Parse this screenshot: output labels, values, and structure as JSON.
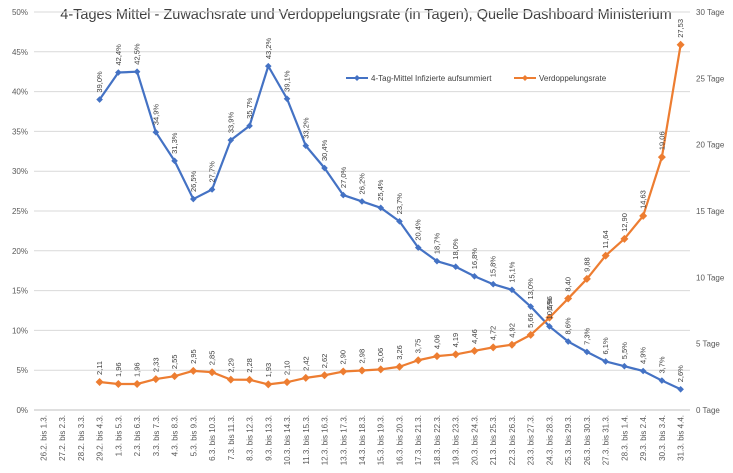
{
  "chart_data": {
    "type": "line",
    "title": "4-Tages Mittel - Zuwachsrate und Verdoppelungsrate (in Tagen), Quelle Dashboard Ministerium",
    "categories": [
      "26.2. bis 1.3.",
      "27.2. bis 2.3.",
      "28.2. bis 3.3.",
      "29.2. bis 4.3.",
      "1.3. bis 5.3.",
      "2.3. bis 6.3.",
      "3.3. bis 7.3.",
      "4.3. bis 8.3.",
      "5.3. bis 9.3.",
      "6.3. bis 10.3.",
      "7.3. bis 11.3.",
      "8.3. bis 12.3.",
      "9.3. bis 13.3.",
      "10.3. bis 14.3.",
      "11.3. bis 15.3.",
      "12.3. bis 16.3.",
      "13.3. bis 17.3.",
      "14.3. bis 18.3.",
      "15.3. bis 19.3.",
      "16.3. bis 20.3.",
      "17.3. bis 21.3.",
      "18.3. bis 22.3.",
      "19.3. bis 23.3.",
      "20.3. bis 24.3.",
      "21.3. bis 25.3.",
      "22.3. bis 26.3.",
      "23.3. bis 27.3.",
      "24.3. bis 28.3.",
      "25.3. bis 29.3.",
      "26.3. bis 30.3.",
      "27.3. bis 31.3.",
      "28.3. bis 1.4.",
      "29.3. bis 2.4.",
      "30.3. bis 3.4.",
      "31.3. bis 4.4."
    ],
    "y_left": {
      "min": 0,
      "max": 50,
      "step": 5,
      "ticks": [
        "0%",
        "5%",
        "10%",
        "15%",
        "20%",
        "25%",
        "30%",
        "35%",
        "40%",
        "45%",
        "50%"
      ]
    },
    "y_right": {
      "min": 0,
      "max": 30,
      "step": 5,
      "ticks": [
        "0 Tage",
        "5 Tage",
        "10 Tage",
        "15 Tage",
        "20 Tage",
        "25 Tage",
        "30 Tage"
      ]
    },
    "grid": true,
    "legend_position": "top-right",
    "series": [
      {
        "name": "4-Tag-Mittel Infizierte aufsummiert",
        "axis": "left",
        "color": "#4472C4",
        "values": [
          null,
          null,
          null,
          39.0,
          42.4,
          42.5,
          34.9,
          31.3,
          26.5,
          27.7,
          33.9,
          35.7,
          43.2,
          39.1,
          33.2,
          30.4,
          27.0,
          26.2,
          25.4,
          23.7,
          20.4,
          18.7,
          18.0,
          16.8,
          15.8,
          15.1,
          13.0,
          10.5,
          8.6,
          7.3,
          6.1,
          5.5,
          4.9,
          3.7,
          2.6
        ],
        "labels": [
          null,
          null,
          null,
          "39,0%",
          "42,4%",
          "42,5%",
          "34,9%",
          "31,3%",
          "26,5%",
          "27,7%",
          "33,9%",
          "35,7%",
          "43,2%",
          "39,1%",
          "33,2%",
          "30,4%",
          "27,0%",
          "26,2%",
          "25,4%",
          "23,7%",
          "20,4%",
          "18,7%",
          "18,0%",
          "16,8%",
          "15,8%",
          "15,1%",
          "13,0%",
          "10,5%",
          "8,6%",
          "7,3%",
          "6,1%",
          "5,5%",
          "4,9%",
          "3,7%",
          "2,6%"
        ]
      },
      {
        "name": "Verdoppelungsrate",
        "axis": "right",
        "color": "#ED7D31",
        "values": [
          null,
          null,
          null,
          2.11,
          1.96,
          1.96,
          2.33,
          2.55,
          2.95,
          2.85,
          2.29,
          2.28,
          1.93,
          2.1,
          2.42,
          2.62,
          2.9,
          2.98,
          3.06,
          3.26,
          3.75,
          4.06,
          4.19,
          4.46,
          4.72,
          4.92,
          5.66,
          6.96,
          8.4,
          9.88,
          11.64,
          12.9,
          14.63,
          19.06,
          27.53
        ],
        "labels": [
          null,
          null,
          null,
          "2,11",
          "1,96",
          "1,96",
          "2,33",
          "2,55",
          "2,95",
          "2,85",
          "2,29",
          "2,28",
          "1,93",
          "2,10",
          "2,42",
          "2,62",
          "2,90",
          "2,98",
          "3,06",
          "3,26",
          "3,75",
          "4,06",
          "4,19",
          "4,46",
          "4,72",
          "4,92",
          "5,66",
          "6,96",
          "8,40",
          "9,88",
          "11,64",
          "12,90",
          "14,63",
          "19,06",
          "27,53"
        ]
      }
    ]
  }
}
